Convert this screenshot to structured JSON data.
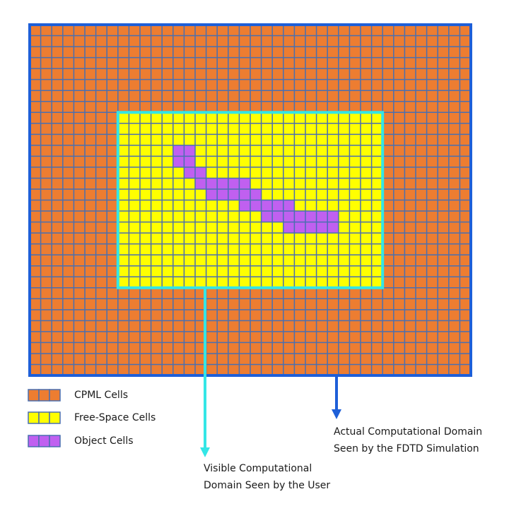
{
  "legend": [
    {
      "label": "CPML Cells"
    },
    {
      "label": "Free-Space Cells"
    },
    {
      "label": "Object Cells"
    }
  ],
  "annotations": {
    "actual": [
      "Actual Computational Domain",
      "Seen by the FDTD Simulation"
    ],
    "visible": [
      "Visible Computational",
      "Domain Seen by the User"
    ]
  }
}
